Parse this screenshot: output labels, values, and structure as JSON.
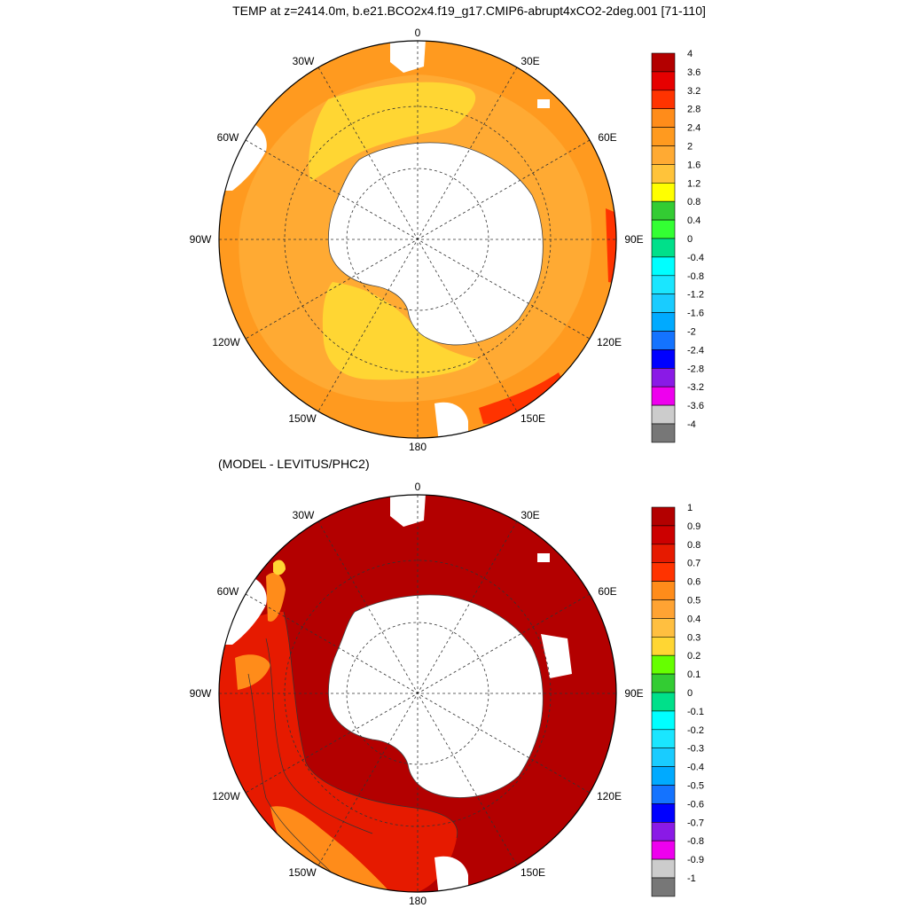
{
  "title": "TEMP at z=2414.0m, b.e21.BCO2x4.f19_g17.CMIP6-abrupt4xCO2-2deg.001 [71-110]",
  "subtitle": "(MODEL - LEVITUS/PHC2)",
  "panels": [
    {
      "name": "model-temperature",
      "longitude_labels": [
        "0",
        "30E",
        "60E",
        "90E",
        "120E",
        "150E",
        "180",
        "150W",
        "120W",
        "90W",
        "60W",
        "30W"
      ],
      "colorbar": {
        "labels": [
          "4",
          "3.6",
          "3.2",
          "2.8",
          "2.4",
          "2",
          "1.6",
          "1.2",
          "0.8",
          "0.4",
          "0",
          "-0.4",
          "-0.8",
          "-1.2",
          "-1.6",
          "-2",
          "-2.4",
          "-2.8",
          "-3.2",
          "-3.6",
          "-4"
        ],
        "colors": [
          "#b30000",
          "#e60000",
          "#ff3300",
          "#ff8c1a",
          "#ff9a1f",
          "#ffaa33",
          "#ffc33a",
          "#ffff00",
          "#33cc33",
          "#33ff33",
          "#00e08a",
          "#00ffff",
          "#1ae6ff",
          "#19ccff",
          "#00aaff",
          "#1473ff",
          "#0000ff",
          "#8a1ae6",
          "#ee00ee",
          "#cccccc",
          "#777777"
        ]
      }
    },
    {
      "name": "model-minus-levitus",
      "longitude_labels": [
        "0",
        "30E",
        "60E",
        "90E",
        "120E",
        "150E",
        "180",
        "150W",
        "120W",
        "90W",
        "60W",
        "30W"
      ],
      "colorbar": {
        "labels": [
          "1",
          "0.9",
          "0.8",
          "0.7",
          "0.6",
          "0.5",
          "0.4",
          "0.3",
          "0.2",
          "0.1",
          "0",
          "-0.1",
          "-0.2",
          "-0.3",
          "-0.4",
          "-0.5",
          "-0.6",
          "-0.7",
          "-0.8",
          "-0.9",
          "-1"
        ],
        "colors": [
          "#b30000",
          "#cc0000",
          "#e61a00",
          "#ff3300",
          "#ff8c1a",
          "#ffa333",
          "#ffbf40",
          "#ffd633",
          "#66ff00",
          "#33cc33",
          "#00e08a",
          "#00ffff",
          "#1ae6ff",
          "#19ccff",
          "#00aaff",
          "#1473ff",
          "#0000ff",
          "#8a1ae6",
          "#ee00ee",
          "#cccccc",
          "#777777"
        ]
      }
    }
  ]
}
